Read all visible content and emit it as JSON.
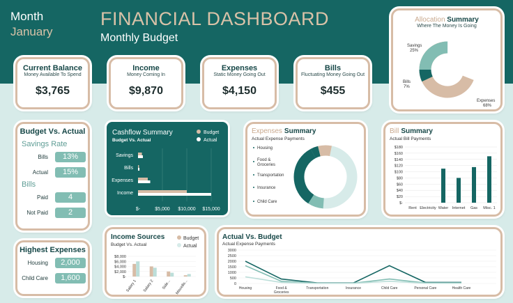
{
  "header": {
    "month_label": "Month",
    "month_value": "January",
    "title": "FINANCIAL DASHBOARD",
    "subtitle": "Monthly Budget"
  },
  "kpis": [
    {
      "title": "Current Balance",
      "subtitle": "Money Available To Spend",
      "value": "$3,765"
    },
    {
      "title": "Income",
      "subtitle": "Money Coming In",
      "value": "$9,870"
    },
    {
      "title": "Expenses",
      "subtitle": "Static Money Going Out",
      "value": "$4,150"
    },
    {
      "title": "Bills",
      "subtitle": "Fluctuating Money Going Out",
      "value": "$455"
    }
  ],
  "allocation": {
    "title_a": "Allocation",
    "title_b": "Summary",
    "subtitle": "Where The Money Is Going",
    "labels": [
      "Savings",
      "25%",
      "Bills",
      "7%",
      "Expenses",
      "68%"
    ]
  },
  "budget_actual": {
    "title": "Budget Vs. Actual",
    "savings_heading": "Savings Rate",
    "savings_rows": [
      {
        "label": "Bills",
        "value": "13%"
      },
      {
        "label": "Actual",
        "value": "15%"
      }
    ],
    "bills_heading": "Bills",
    "bills_rows": [
      {
        "label": "Paid",
        "value": "4"
      },
      {
        "label": "Not Paid",
        "value": "2"
      }
    ]
  },
  "highest": {
    "title": "Highest Expenses",
    "rows": [
      {
        "label": "Housing",
        "value": "2,000"
      },
      {
        "label": "Child Care",
        "value": "1,600"
      }
    ]
  },
  "colors": {
    "banner": "#156663",
    "budget": "#d7bca6",
    "actual": "#156663",
    "light_teal": "#bcded9",
    "mid_teal": "#82bdb3"
  },
  "chart_data": [
    {
      "type": "bar",
      "title": "Cashflow Summary",
      "subtitle": "Budget Vs. Actual",
      "categories": [
        "Savings",
        "Bills",
        "Expenses",
        "Income"
      ],
      "series": [
        {
          "name": "Budget",
          "values": [
            800,
            200,
            2000,
            10000
          ]
        },
        {
          "name": "Actual",
          "values": [
            1000,
            300,
            2500,
            15000
          ]
        }
      ],
      "xticks": [
        "$-",
        "$5,000",
        "$10,000",
        "$15,000"
      ],
      "xlim": [
        0,
        15000
      ],
      "legend": "top-right"
    },
    {
      "type": "pie",
      "title": "Expenses Summary",
      "subtitle": "Actual Expense Payments",
      "categories": [
        "Housing",
        "Food & Groceries",
        "Transportation",
        "Insurance",
        "Child Care"
      ],
      "values": [
        48,
        8,
        33,
        4,
        7
      ]
    },
    {
      "type": "bar",
      "title": "Bill Summary",
      "subtitle": "Actual Bill Payments",
      "categories": [
        "Rent",
        "Electricity",
        "Water",
        "Internet",
        "Gas",
        "Misc. 1"
      ],
      "values": [
        0,
        0,
        110,
        80,
        115,
        150
      ],
      "yticks": [
        "$180",
        "$160",
        "$140",
        "$120",
        "$100",
        "$80",
        "$60",
        "$40",
        "$20",
        "$-"
      ],
      "ylim": [
        0,
        180
      ]
    },
    {
      "type": "bar",
      "title": "Income Sources",
      "subtitle": "Budget Vs. Actual",
      "categories": [
        "Salary 1",
        "Salary 2",
        "Side...",
        "Miscella..."
      ],
      "series": [
        {
          "name": "Budget",
          "values": [
            5000,
            4000,
            2000,
            500
          ]
        },
        {
          "name": "Actual",
          "values": [
            6000,
            3500,
            1500,
            1000
          ]
        }
      ],
      "yticks": [
        "$8,000",
        "$6,000",
        "$4,000",
        "$2,000",
        "$-"
      ],
      "ylim": [
        0,
        8000
      ],
      "legend": "top-right"
    },
    {
      "type": "line",
      "title": "Actual Vs. Budget",
      "subtitle": "Actual Expense Payments",
      "categories": [
        "Housing",
        "Food & Groceries",
        "Transportation",
        "Insurance",
        "Child Care",
        "Personal Care",
        "Health Care"
      ],
      "series": [
        {
          "values": [
            2000,
            400,
            50,
            50,
            1600,
            100,
            100
          ]
        },
        {
          "values": [
            1600,
            200,
            30,
            30,
            400,
            50,
            50
          ]
        },
        {
          "values": [
            600,
            100,
            20,
            20,
            200,
            30,
            30
          ]
        }
      ],
      "yticks": [
        "3000",
        "2500",
        "2000",
        "1500",
        "1000",
        "500",
        "0"
      ],
      "ylim": [
        0,
        3000
      ]
    }
  ]
}
